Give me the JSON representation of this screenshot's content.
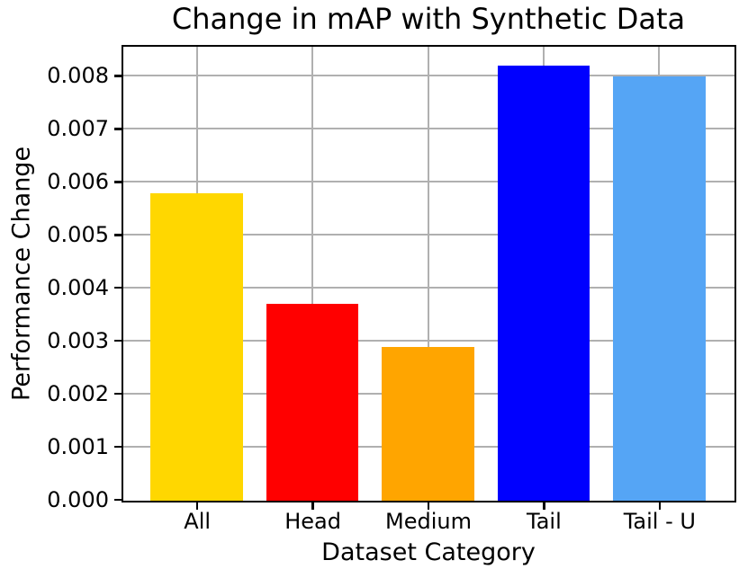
{
  "chart_data": {
    "type": "bar",
    "title": "Change in mAP with Synthetic Data",
    "xlabel": "Dataset Category",
    "ylabel": "Performance Change",
    "categories": [
      "All",
      "Head",
      "Medium",
      "Tail",
      "Tail - U"
    ],
    "values": [
      0.0058,
      0.0037,
      0.0029,
      0.0082,
      0.008
    ],
    "bar_colors": [
      "#FFD700",
      "#FF0000",
      "#FFA500",
      "#0000FF",
      "#55A5F5"
    ],
    "ylim": [
      0,
      0.00855
    ],
    "yticks": [
      0.0,
      0.001,
      0.002,
      0.003,
      0.004,
      0.005,
      0.006,
      0.007,
      0.008
    ],
    "ytick_labels": [
      "0.000",
      "0.001",
      "0.002",
      "0.003",
      "0.004",
      "0.005",
      "0.006",
      "0.007",
      "0.008"
    ],
    "grid": "both",
    "grid_color": "#b0b0b0",
    "axis_color": "#000000",
    "background_color": "#ffffff",
    "legend": "none"
  }
}
